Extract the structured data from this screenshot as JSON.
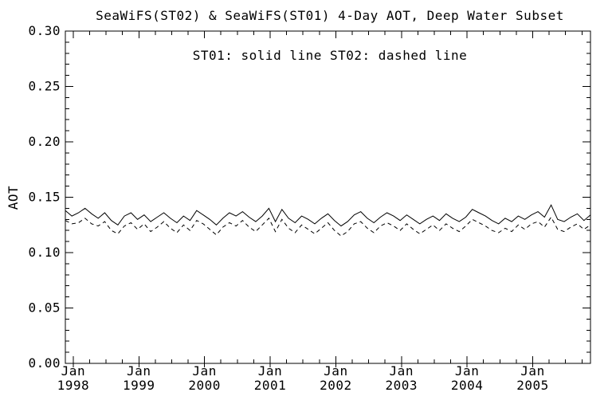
{
  "chart_data": {
    "type": "line",
    "title": "SeaWiFS(ST02) & SeaWiFS(ST01) 4-Day AOT, Deep Water Subset",
    "legend_note": "ST01: solid line   ST02: dashed line",
    "xlabel": "",
    "ylabel": "AOT",
    "ylim": [
      0.0,
      0.3
    ],
    "x_range_years": [
      1997.88,
      2005.88
    ],
    "grid": false,
    "legend_position": "top-center-inside",
    "y_major_ticks": [
      {
        "value": 0.0,
        "label": "0.00"
      },
      {
        "value": 0.05,
        "label": "0.05"
      },
      {
        "value": 0.1,
        "label": "0.10"
      },
      {
        "value": 0.15,
        "label": "0.15"
      },
      {
        "value": 0.2,
        "label": "0.20"
      },
      {
        "value": 0.25,
        "label": "0.25"
      },
      {
        "value": 0.3,
        "label": "0.30"
      }
    ],
    "y_minor_step": 0.01,
    "x_major_ticks": [
      {
        "year": 1998,
        "line1": "Jan",
        "line2": "1998"
      },
      {
        "year": 1999,
        "line1": "Jan",
        "line2": "1999"
      },
      {
        "year": 2000,
        "line1": "Jan",
        "line2": "2000"
      },
      {
        "year": 2001,
        "line1": "Jan",
        "line2": "2001"
      },
      {
        "year": 2002,
        "line1": "Jan",
        "line2": "2002"
      },
      {
        "year": 2003,
        "line1": "Jan",
        "line2": "2003"
      },
      {
        "year": 2004,
        "line1": "Jan",
        "line2": "2004"
      },
      {
        "year": 2005,
        "line1": "Jan",
        "line2": "2005"
      }
    ],
    "x_minor_step_years": 0.25,
    "colors": {
      "foreground": "#000000",
      "background": "#ffffff"
    },
    "series": [
      {
        "name": "ST01",
        "line_style": "solid",
        "x_start_year": 1997.88,
        "x_step_years": 0.1,
        "values": [
          0.138,
          0.133,
          0.136,
          0.14,
          0.135,
          0.131,
          0.136,
          0.129,
          0.125,
          0.133,
          0.136,
          0.13,
          0.134,
          0.128,
          0.132,
          0.136,
          0.131,
          0.127,
          0.133,
          0.129,
          0.138,
          0.134,
          0.13,
          0.125,
          0.131,
          0.136,
          0.133,
          0.137,
          0.132,
          0.128,
          0.133,
          0.14,
          0.128,
          0.139,
          0.131,
          0.127,
          0.133,
          0.13,
          0.126,
          0.131,
          0.135,
          0.129,
          0.124,
          0.128,
          0.134,
          0.137,
          0.131,
          0.127,
          0.132,
          0.136,
          0.133,
          0.129,
          0.134,
          0.13,
          0.126,
          0.13,
          0.133,
          0.129,
          0.135,
          0.131,
          0.128,
          0.132,
          0.139,
          0.136,
          0.133,
          0.129,
          0.126,
          0.131,
          0.128,
          0.133,
          0.13,
          0.134,
          0.137,
          0.132,
          0.143,
          0.13,
          0.128,
          0.132,
          0.135,
          0.129,
          0.134
        ]
      },
      {
        "name": "ST02",
        "line_style": "dashed",
        "x_start_year": 1997.88,
        "x_step_years": 0.1,
        "values": [
          0.129,
          0.126,
          0.127,
          0.131,
          0.126,
          0.124,
          0.128,
          0.12,
          0.117,
          0.124,
          0.127,
          0.121,
          0.126,
          0.119,
          0.123,
          0.128,
          0.122,
          0.118,
          0.125,
          0.12,
          0.129,
          0.126,
          0.121,
          0.116,
          0.123,
          0.127,
          0.124,
          0.129,
          0.123,
          0.119,
          0.125,
          0.131,
          0.119,
          0.13,
          0.122,
          0.118,
          0.125,
          0.121,
          0.117,
          0.122,
          0.127,
          0.12,
          0.115,
          0.119,
          0.126,
          0.128,
          0.122,
          0.118,
          0.124,
          0.127,
          0.124,
          0.12,
          0.126,
          0.121,
          0.117,
          0.121,
          0.125,
          0.12,
          0.126,
          0.122,
          0.119,
          0.124,
          0.13,
          0.127,
          0.124,
          0.12,
          0.118,
          0.122,
          0.119,
          0.125,
          0.121,
          0.126,
          0.128,
          0.123,
          0.132,
          0.121,
          0.119,
          0.123,
          0.126,
          0.121,
          0.125
        ]
      }
    ]
  }
}
